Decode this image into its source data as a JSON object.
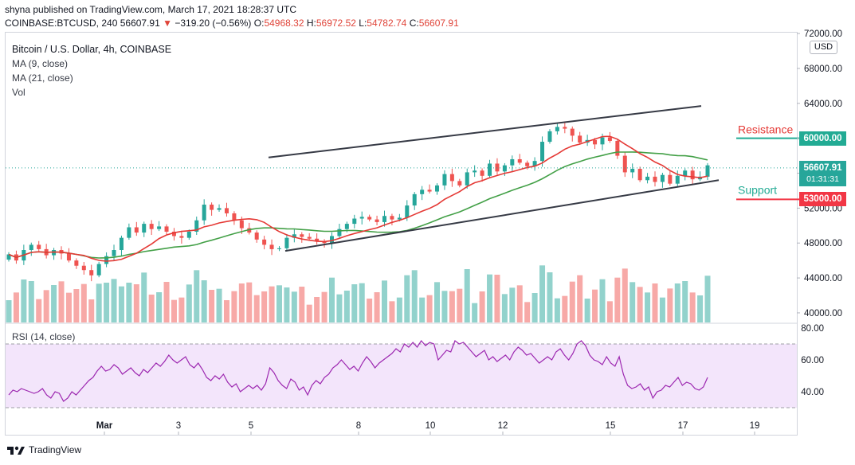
{
  "header": {
    "line1": "shyna published on TradingView.com, March 17, 2021 18:28:37 UTC",
    "symbol": "COINBASE:BTCUSD, 240",
    "last": "56607.91",
    "arrow": "▼",
    "change": "−319.20 (−0.56%)",
    "o_label": "O:",
    "o_value": "54968.32",
    "h_label": "H:",
    "h_value": "56972.52",
    "l_label": "L:",
    "l_value": "54782.74",
    "c_label": "C:",
    "c_value": "56607.91"
  },
  "legend": {
    "title": "Bitcoin / U.S. Dollar, 4h, COINBASE",
    "ma9": "MA (9, close)",
    "ma21": "MA (21, close)",
    "vol": "Vol",
    "rsi": "RSI (14, close)"
  },
  "currency": "USD",
  "current_price": {
    "value": "56607.91",
    "countdown": "01:31:31",
    "color": "#26a69a"
  },
  "levels": {
    "resistance": {
      "label": "Resistance",
      "value": "60000.00",
      "color": "#22ab94"
    },
    "support": {
      "label": "Support",
      "value": "53000.00",
      "label_color": "#22ab94",
      "tag_color": "#f23645"
    }
  },
  "footer": {
    "brand": "TradingView"
  },
  "colors": {
    "up": "#26a69a",
    "down": "#ef5350",
    "ma9": "#e53935",
    "ma21": "#43a047",
    "rsi": "#9c27b0",
    "channel": "#363a45"
  },
  "chart_data": [
    {
      "type": "candlestick",
      "title": "Bitcoin / U.S. Dollar, 4h, COINBASE",
      "x_tick_labels": [
        "Mar",
        "3",
        "5",
        "8",
        "10",
        "12",
        "15",
        "17",
        "19"
      ],
      "y_tick_labels": [
        "40000.00",
        "44000.00",
        "48000.00",
        "52000.00",
        "56000.00",
        "60000.00",
        "64000.00",
        "68000.00",
        "72000.00"
      ],
      "ylim": [
        38500,
        72500
      ],
      "close_approx": [
        46700,
        46000,
        47200,
        47800,
        47300,
        46600,
        47200,
        46800,
        46000,
        45400,
        44900,
        44300,
        45600,
        46500,
        47200,
        48600,
        49800,
        49200,
        50200,
        49600,
        49900,
        49300,
        48800,
        48600,
        49300,
        50600,
        52400,
        51800,
        52000,
        51400,
        50600,
        49700,
        49200,
        48400,
        47800,
        47300,
        47400,
        48600,
        49000,
        48700,
        48500,
        48200,
        48000,
        48800,
        49600,
        50200,
        50800,
        51000,
        50700,
        50400,
        51100,
        50700,
        50900,
        52300,
        53600,
        54100,
        53900,
        54600,
        55900,
        55100,
        54600,
        56100,
        56300,
        55700,
        57100,
        56200,
        56900,
        57600,
        57200,
        56800,
        57400,
        59600,
        60800,
        61300,
        61100,
        60300,
        59500,
        59800,
        59300,
        60100,
        59700,
        58000,
        56100,
        56500,
        55200,
        55600,
        55000,
        55800,
        54800,
        55700,
        56300,
        55300,
        55600,
        56900
      ],
      "annotations": [
        "Resistance",
        "Support"
      ],
      "series": [
        {
          "name": "MA (9, close)"
        },
        {
          "name": "MA (21, close)"
        },
        {
          "name": "Vol"
        }
      ]
    },
    {
      "type": "line",
      "title": "RSI (14, close)",
      "y_tick_labels": [
        "40.00",
        "60.00",
        "80.00"
      ],
      "ylim": [
        27,
        81
      ],
      "values": [
        38,
        41,
        40,
        42,
        41,
        40,
        39,
        40,
        42,
        38,
        36,
        40,
        39,
        34,
        36,
        40,
        38,
        41,
        44,
        47,
        49,
        53,
        56,
        53,
        54,
        57,
        55,
        51,
        53,
        55,
        52,
        50,
        54,
        52,
        55,
        58,
        56,
        59,
        63,
        60,
        58,
        60,
        62,
        57,
        55,
        58,
        54,
        49,
        47,
        50,
        48,
        51,
        46,
        43,
        45,
        40,
        42,
        44,
        42,
        44,
        41,
        45,
        55,
        52,
        47,
        44,
        42,
        48,
        46,
        41,
        43,
        38,
        44,
        47,
        45,
        49,
        51,
        55,
        57,
        60,
        57,
        54,
        56,
        53,
        58,
        62,
        59,
        55,
        58,
        60,
        62,
        64,
        67,
        65,
        70,
        68,
        71,
        68,
        72,
        69,
        71,
        70,
        60,
        63,
        66,
        65,
        72,
        70,
        71,
        68,
        65,
        62,
        64,
        66,
        60,
        62,
        59,
        61,
        63,
        60,
        65,
        68,
        66,
        63,
        64,
        61,
        58,
        60,
        62,
        60,
        65,
        67,
        63,
        60,
        64,
        70,
        72,
        69,
        63,
        60,
        59,
        57,
        62,
        58,
        56,
        62,
        51,
        44,
        42,
        43,
        45,
        41,
        43,
        36,
        40,
        41,
        44,
        43,
        46,
        49,
        44,
        46,
        45,
        42,
        41,
        43,
        49
      ],
      "bands": [
        30,
        70
      ]
    }
  ]
}
